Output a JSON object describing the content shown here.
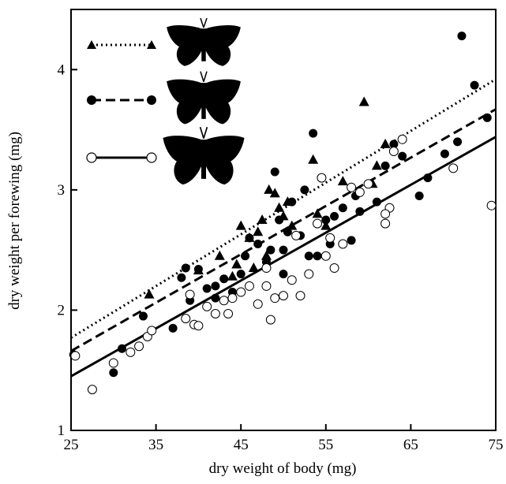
{
  "chart_data": {
    "type": "scatter",
    "x_label": "dry weight of body (mg)",
    "y_label": "dry weight per forewing (mg)",
    "xlim": [
      25,
      75
    ],
    "ylim": [
      1,
      4.5
    ],
    "xticks": [
      25,
      35,
      45,
      55,
      65,
      75
    ],
    "yticks": [
      1,
      2,
      3,
      4
    ],
    "grid": false,
    "series": [
      {
        "marker": "triangle",
        "color": "#000000",
        "x": [
          34.2,
          40,
          42.5,
          44,
          45,
          46,
          47,
          47.5,
          48.3,
          49,
          49.5,
          50,
          50.5,
          51,
          53.5,
          54,
          55,
          57,
          59.5,
          61,
          62,
          46.5,
          48,
          44.5,
          60.5
        ],
        "values": [
          2.13,
          2.33,
          2.45,
          2.28,
          2.7,
          2.6,
          2.65,
          2.75,
          3.0,
          2.97,
          2.85,
          2.78,
          2.9,
          2.7,
          3.25,
          2.8,
          2.7,
          3.07,
          3.73,
          3.2,
          3.38,
          2.35,
          2.45,
          2.38,
          3.05
        ]
      },
      {
        "marker": "filled-circle",
        "color": "#000000",
        "x": [
          25.3,
          30,
          31,
          33.5,
          37,
          38,
          38.5,
          39,
          40,
          41,
          42,
          43,
          44,
          45,
          45.5,
          46,
          47,
          48,
          48.5,
          49,
          49.5,
          50,
          50.5,
          51,
          52,
          52.5,
          53,
          53.5,
          54,
          55,
          55.5,
          56,
          57,
          58,
          58.5,
          59,
          60,
          61,
          62,
          63,
          64,
          66,
          67,
          69,
          70.5,
          71,
          72.5,
          74,
          42,
          50
        ],
        "values": [
          1.63,
          1.48,
          1.68,
          1.95,
          1.85,
          2.27,
          2.35,
          2.08,
          2.34,
          2.18,
          2.2,
          2.26,
          2.15,
          2.3,
          2.45,
          2.6,
          2.55,
          2.4,
          2.5,
          3.15,
          2.75,
          2.5,
          2.65,
          2.9,
          2.62,
          3.0,
          2.45,
          3.47,
          2.45,
          2.75,
          2.55,
          2.78,
          2.85,
          2.58,
          2.95,
          2.82,
          3.05,
          2.9,
          3.2,
          3.38,
          3.28,
          2.95,
          3.1,
          3.3,
          3.4,
          4.28,
          3.87,
          3.6,
          2.1,
          2.3
        ]
      },
      {
        "marker": "open-circle",
        "color": "#000000",
        "x": [
          25.5,
          27.5,
          30,
          32,
          33,
          34,
          34.5,
          38.5,
          39,
          39.5,
          40,
          41,
          42,
          43,
          43.5,
          44,
          45,
          46,
          47,
          48,
          48.5,
          49,
          50,
          51,
          52,
          53,
          54,
          54.5,
          55,
          56,
          57,
          58,
          59,
          60,
          62,
          62.5,
          63,
          64,
          70,
          74.5,
          51.5,
          55.5,
          48,
          62
        ],
        "values": [
          1.62,
          1.34,
          1.56,
          1.65,
          1.7,
          1.78,
          1.83,
          1.93,
          2.13,
          1.88,
          1.87,
          2.03,
          1.97,
          2.08,
          1.97,
          2.1,
          2.15,
          2.2,
          2.05,
          2.2,
          1.92,
          2.1,
          2.12,
          2.25,
          2.12,
          2.3,
          2.72,
          3.1,
          2.45,
          2.35,
          2.55,
          3.02,
          2.98,
          3.05,
          2.72,
          2.85,
          3.32,
          3.42,
          3.18,
          2.87,
          2.62,
          2.6,
          2.35,
          2.8
        ]
      }
    ],
    "lines": [
      {
        "style": "dotted",
        "color": "#000000",
        "x": [
          25,
          75
        ],
        "values": [
          1.77,
          3.92
        ]
      },
      {
        "style": "dashed",
        "color": "#000000",
        "x": [
          25,
          75
        ],
        "values": [
          1.66,
          3.67
        ]
      },
      {
        "style": "solid",
        "color": "#000000",
        "x": [
          25,
          75
        ],
        "values": [
          1.45,
          3.44
        ]
      }
    ]
  }
}
